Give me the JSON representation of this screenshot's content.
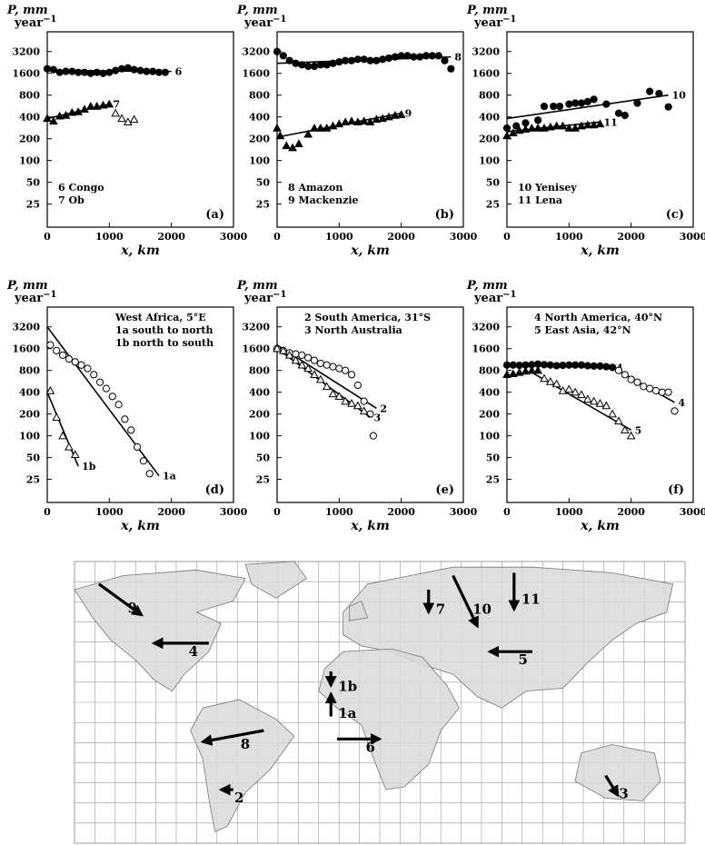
{
  "x_axis_label": "x, km",
  "y_axis_label_main": "P, mm",
  "y_axis_label_sub": "year",
  "y_axis_label_exp": "−1",
  "chart_data": [
    {
      "id": "a",
      "panel_label": "(a)",
      "type": "scatter",
      "xlim": [
        0,
        3000
      ],
      "ylim": [
        12,
        6000
      ],
      "yscale": "log",
      "xticks": [
        0,
        1000,
        2000,
        3000
      ],
      "yticks": [
        25,
        50,
        100,
        200,
        400,
        800,
        1600,
        3200
      ],
      "legend": [
        "6 Congo",
        "7 Ob"
      ],
      "series": [
        {
          "name": "6",
          "marker": "filled-circle",
          "x": [
            0,
            100,
            200,
            300,
            400,
            500,
            600,
            700,
            800,
            900,
            1000,
            1100,
            1200,
            1300,
            1400,
            1500,
            1600,
            1700,
            1800,
            1900
          ],
          "y": [
            1850,
            1800,
            1650,
            1700,
            1700,
            1650,
            1650,
            1600,
            1650,
            1600,
            1650,
            1750,
            1850,
            1900,
            1800,
            1750,
            1700,
            1700,
            1650,
            1650
          ],
          "fit": {
            "x": [
              0,
              2000
            ],
            "y": [
              1750,
              1700
            ]
          }
        },
        {
          "name": "7",
          "marker": "filled-triangle",
          "x": [
            0,
            100,
            200,
            300,
            400,
            500,
            600,
            700,
            800,
            900,
            1000
          ],
          "y": [
            380,
            350,
            410,
            420,
            460,
            470,
            510,
            560,
            560,
            580,
            600
          ],
          "fit": {
            "x": [
              0,
              1000
            ],
            "y": [
              380,
              600
            ]
          }
        },
        {
          "name": "",
          "marker": "open-triangle",
          "x": [
            1100,
            1200,
            1300,
            1400
          ],
          "y": [
            450,
            380,
            340,
            370
          ]
        }
      ]
    },
    {
      "id": "b",
      "panel_label": "(b)",
      "type": "scatter",
      "xlim": [
        0,
        3000
      ],
      "ylim": [
        12,
        6000
      ],
      "yscale": "log",
      "xticks": [
        0,
        1000,
        2000,
        3000
      ],
      "yticks": [
        25,
        50,
        100,
        200,
        400,
        800,
        1600,
        3200
      ],
      "legend": [
        "8 Amazon",
        "9 Mackenzie"
      ],
      "series": [
        {
          "name": "8",
          "marker": "filled-circle",
          "x": [
            0,
            100,
            200,
            300,
            400,
            500,
            600,
            700,
            800,
            900,
            1000,
            1100,
            1200,
            1300,
            1400,
            1500,
            1600,
            1700,
            1800,
            1900,
            2000,
            2100,
            2200,
            2300,
            2400,
            2500,
            2600,
            2700,
            2800
          ],
          "y": [
            3200,
            2800,
            2400,
            2200,
            2100,
            2000,
            2000,
            2100,
            2100,
            2200,
            2300,
            2400,
            2400,
            2500,
            2500,
            2400,
            2400,
            2500,
            2600,
            2700,
            2800,
            2800,
            2700,
            2700,
            2800,
            2800,
            2800,
            2400,
            1850
          ],
          "fit": {
            "x": [
              0,
              2800
            ],
            "y": [
              2200,
              2700
            ]
          }
        },
        {
          "name": "9",
          "marker": "filled-triangle",
          "x": [
            0,
            50,
            150,
            250,
            350,
            500,
            600,
            700,
            800,
            900,
            1000,
            1100,
            1200,
            1300,
            1400,
            1500,
            1600,
            1700,
            1800,
            1900,
            2000
          ],
          "y": [
            280,
            220,
            160,
            150,
            170,
            230,
            280,
            280,
            280,
            300,
            320,
            340,
            350,
            340,
            350,
            340,
            370,
            380,
            400,
            420,
            430
          ],
          "fit": {
            "x": [
              0,
              2000
            ],
            "y": [
              210,
              450
            ]
          }
        }
      ]
    },
    {
      "id": "c",
      "panel_label": "(c)",
      "type": "scatter",
      "xlim": [
        0,
        3000
      ],
      "ylim": [
        12,
        6000
      ],
      "yscale": "log",
      "xticks": [
        0,
        1000,
        2000,
        3000
      ],
      "yticks": [
        25,
        50,
        100,
        200,
        400,
        800,
        1600,
        3200
      ],
      "legend": [
        "10 Yenisey",
        "11 Lena"
      ],
      "series": [
        {
          "name": "10",
          "marker": "filled-circle",
          "x": [
            0,
            150,
            300,
            500,
            600,
            750,
            850,
            1000,
            1100,
            1200,
            1300,
            1400,
            1600,
            1800,
            1900,
            2100,
            2300,
            2450,
            2600
          ],
          "y": [
            280,
            300,
            330,
            360,
            560,
            560,
            560,
            600,
            620,
            620,
            650,
            700,
            600,
            450,
            420,
            620,
            900,
            840,
            550
          ],
          "fit": {
            "x": [
              0,
              2600
            ],
            "y": [
              380,
              800
            ]
          }
        },
        {
          "name": "11",
          "marker": "filled-triangle",
          "x": [
            0,
            100,
            200,
            300,
            400,
            500,
            600,
            700,
            800,
            900,
            1000,
            1100,
            1200,
            1300,
            1400,
            1500
          ],
          "y": [
            220,
            240,
            260,
            270,
            280,
            280,
            280,
            290,
            300,
            300,
            280,
            280,
            300,
            310,
            310,
            320
          ],
          "fit": {
            "x": [
              0,
              1500
            ],
            "y": [
              250,
              340
            ]
          }
        }
      ]
    },
    {
      "id": "d",
      "panel_label": "(d)",
      "type": "scatter",
      "xlim": [
        0,
        3000
      ],
      "ylim": [
        12,
        6000
      ],
      "yscale": "log",
      "xticks": [
        0,
        1000,
        2000,
        3000
      ],
      "yticks": [
        25,
        50,
        100,
        200,
        400,
        800,
        1600,
        3200
      ],
      "legend": [
        "West Africa, 5°E",
        "1a south to north",
        "1b north to south"
      ],
      "series": [
        {
          "name": "1a",
          "marker": "open-circle",
          "x": [
            50,
            150,
            250,
            350,
            450,
            550,
            650,
            750,
            850,
            950,
            1050,
            1150,
            1250,
            1350,
            1450,
            1550,
            1650
          ],
          "y": [
            1800,
            1500,
            1300,
            1150,
            1050,
            950,
            850,
            700,
            550,
            450,
            350,
            270,
            170,
            120,
            70,
            45,
            30
          ],
          "fit": {
            "x": [
              0,
              1800
            ],
            "y": [
              3200,
              28
            ]
          }
        },
        {
          "name": "1b",
          "marker": "open-triangle",
          "x": [
            50,
            150,
            250,
            350,
            450
          ],
          "y": [
            420,
            180,
            100,
            70,
            55
          ],
          "fit": {
            "x": [
              0,
              500
            ],
            "y": [
              400,
              38
            ]
          }
        }
      ]
    },
    {
      "id": "e",
      "panel_label": "(e)",
      "type": "scatter",
      "xlim": [
        0,
        3000
      ],
      "ylim": [
        12,
        6000
      ],
      "yscale": "log",
      "xticks": [
        0,
        1000,
        2000,
        3000
      ],
      "yticks": [
        25,
        50,
        100,
        200,
        400,
        800,
        1600,
        3200
      ],
      "legend": [
        "2 South America, 31°S",
        "3 North Australia"
      ],
      "series": [
        {
          "name": "2",
          "marker": "open-circle",
          "x": [
            0,
            100,
            200,
            300,
            400,
            500,
            600,
            700,
            800,
            900,
            1000,
            1100,
            1200,
            1300,
            1400,
            1500,
            1550
          ],
          "y": [
            1600,
            1500,
            1400,
            1350,
            1300,
            1200,
            1100,
            1000,
            950,
            900,
            850,
            800,
            700,
            500,
            300,
            200,
            100
          ],
          "fit": {
            "x": [
              0,
              1600
            ],
            "y": [
              1800,
              240
            ]
          }
        },
        {
          "name": "3",
          "marker": "open-triangle",
          "x": [
            0,
            100,
            200,
            300,
            400,
            500,
            600,
            700,
            800,
            900,
            1000,
            1100,
            1200,
            1300,
            1400
          ],
          "y": [
            1600,
            1500,
            1300,
            1100,
            950,
            850,
            700,
            600,
            480,
            380,
            350,
            300,
            280,
            260,
            220
          ],
          "fit": {
            "x": [
              0,
              1500
            ],
            "y": [
              1600,
              180
            ]
          }
        }
      ]
    },
    {
      "id": "f",
      "panel_label": "(f)",
      "type": "scatter",
      "xlim": [
        0,
        3000
      ],
      "ylim": [
        12,
        6000
      ],
      "yscale": "log",
      "xticks": [
        0,
        1000,
        2000,
        3000
      ],
      "yticks": [
        25,
        50,
        100,
        200,
        400,
        800,
        1600,
        3200
      ],
      "legend": [
        "4 North America, 40°N",
        "5 East Asia, 42°N"
      ],
      "series": [
        {
          "name": "4",
          "marker": "filled-circle",
          "x": [
            0,
            100,
            200,
            300,
            400,
            500,
            600,
            700,
            800,
            900,
            1000,
            1100,
            1200,
            1300,
            1400,
            1500,
            1600,
            1700
          ],
          "y": [
            950,
            950,
            940,
            950,
            960,
            980,
            960,
            950,
            930,
            940,
            950,
            950,
            950,
            930,
            920,
            920,
            900,
            880
          ],
          "fit": {
            "x": [
              0,
              1700
            ],
            "y": [
              950,
              880
            ]
          }
        },
        {
          "name": "4",
          "marker": "open-circle",
          "x": [
            1800,
            1900,
            2000,
            2100,
            2200,
            2300,
            2400,
            2500,
            2600,
            2700
          ],
          "y": [
            800,
            700,
            600,
            550,
            480,
            450,
            420,
            400,
            400,
            220
          ],
          "fit": {
            "x": [
              1700,
              2700
            ],
            "y": [
              880,
              290
            ]
          }
        },
        {
          "name": "5",
          "marker": "filled-triangle",
          "x": [
            0,
            100,
            200,
            300,
            400,
            500
          ],
          "y": [
            700,
            720,
            750,
            780,
            800,
            800
          ]
        },
        {
          "name": "5",
          "marker": "open-triangle",
          "x": [
            600,
            700,
            800,
            900,
            1000,
            1100,
            1200,
            1300,
            1400,
            1500,
            1600,
            1700,
            1800,
            1900,
            2000
          ],
          "y": [
            620,
            560,
            520,
            420,
            440,
            400,
            370,
            320,
            300,
            280,
            260,
            200,
            160,
            120,
            100
          ],
          "fit": {
            "x": [
              400,
              2000
            ],
            "y": [
              750,
              120
            ]
          }
        }
      ]
    }
  ],
  "map": {
    "arrows": [
      {
        "label": "9",
        "fx": 0.04,
        "fy": 0.08,
        "tx": 0.11,
        "ty": 0.19
      },
      {
        "label": "4",
        "fx": 0.22,
        "fy": 0.29,
        "tx": 0.13,
        "ty": 0.29
      },
      {
        "label": "8",
        "fx": 0.31,
        "fy": 0.6,
        "tx": 0.21,
        "ty": 0.64
      },
      {
        "label": "2",
        "fx": 0.26,
        "fy": 0.81,
        "tx": 0.24,
        "ty": 0.81
      },
      {
        "label": "1b",
        "fx": 0.42,
        "fy": 0.39,
        "tx": 0.42,
        "ty": 0.44
      },
      {
        "label": "1a",
        "fx": 0.42,
        "fy": 0.55,
        "tx": 0.42,
        "ty": 0.47
      },
      {
        "label": "6",
        "fx": 0.43,
        "fy": 0.63,
        "tx": 0.5,
        "ty": 0.63
      },
      {
        "label": "7",
        "fx": 0.58,
        "fy": 0.1,
        "tx": 0.58,
        "ty": 0.18
      },
      {
        "label": "10",
        "fx": 0.62,
        "fy": 0.05,
        "tx": 0.66,
        "ty": 0.23
      },
      {
        "label": "11",
        "fx": 0.72,
        "fy": 0.04,
        "tx": 0.72,
        "ty": 0.17
      },
      {
        "label": "5",
        "fx": 0.75,
        "fy": 0.32,
        "tx": 0.68,
        "ty": 0.32
      },
      {
        "label": "3",
        "fx": 0.87,
        "fy": 0.76,
        "tx": 0.89,
        "ty": 0.83
      }
    ]
  }
}
